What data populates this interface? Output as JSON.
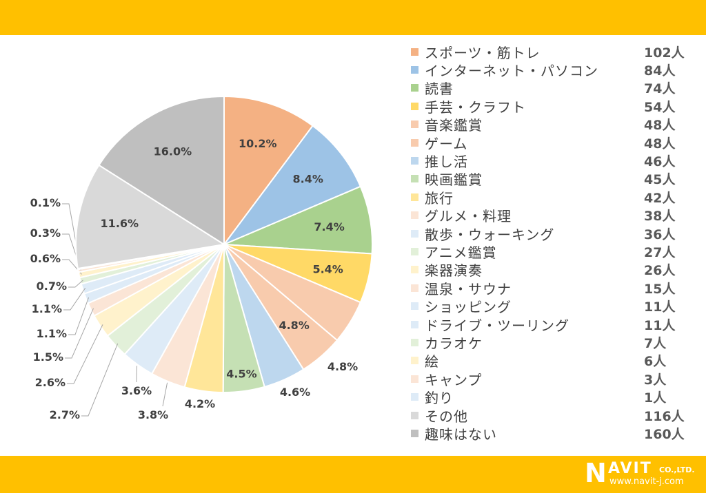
{
  "header": {
    "bar_color": "#FFC000"
  },
  "footer": {
    "bar_color": "#FFC000",
    "logo": {
      "mark": "N",
      "name": "AVIT",
      "suffix": "CO.,LTD.",
      "url": "www.navit-j.com"
    }
  },
  "chart_data": {
    "type": "pie",
    "title": "",
    "unit": "人",
    "start_angle_deg": 0,
    "direction": "clockwise",
    "categories": [
      "スポーツ・筋トレ",
      "インターネット・パソコン",
      "読書",
      "手芸・クラフト",
      "音楽鑑賞",
      "ゲーム",
      "推し活",
      "映画鑑賞",
      "旅行",
      "グルメ・料理",
      "散歩・ウォーキング",
      "アニメ鑑賞",
      "楽器演奏",
      "温泉・サウナ",
      "ショッピング",
      "ドライブ・ツーリング",
      "カラオケ",
      "絵",
      "キャンプ",
      "釣り",
      "その他",
      "趣味はない"
    ],
    "values": [
      102,
      84,
      74,
      54,
      48,
      48,
      46,
      45,
      42,
      38,
      36,
      27,
      26,
      15,
      11,
      11,
      7,
      6,
      3,
      1,
      116,
      160
    ],
    "percent_labels": [
      "10.2%",
      "8.4%",
      "7.4%",
      "5.4%",
      "4.8%",
      "4.8%",
      "4.6%",
      "4.5%",
      "4.2%",
      "3.8%",
      "3.6%",
      "2.7%",
      "2.6%",
      "1.5%",
      "1.1%",
      "1.1%",
      "0.7%",
      "0.6%",
      "0.3%",
      "0.1%",
      "11.6%",
      "16.0%"
    ],
    "colors": [
      "#F4B183",
      "#9DC3E6",
      "#A9D18E",
      "#FFD966",
      "#F8CBAD",
      "#F8CBAD",
      "#BDD7EE",
      "#C5E0B4",
      "#FFE699",
      "#FBE5D6",
      "#DEEBF7",
      "#E2F0D9",
      "#FFF2CC",
      "#FBE5D6",
      "#DEEBF7",
      "#DEEBF7",
      "#E2F0D9",
      "#FFF2CC",
      "#FBE5D6",
      "#DEEBF7",
      "#D9D9D9",
      "#BFBFBF"
    ],
    "legend_position": "right",
    "legend_count_labels": [
      "102人",
      "84人",
      "74人",
      "54人",
      "48人",
      "48人",
      "46人",
      "45人",
      "42人",
      "38人",
      "36人",
      "27人",
      "26人",
      "15人",
      "11人",
      "11人",
      "7人",
      "6人",
      "3人",
      "1人",
      "116人",
      "160人"
    ]
  }
}
